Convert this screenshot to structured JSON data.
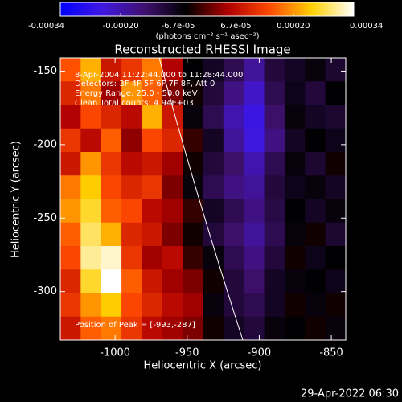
{
  "chart_data": {
    "type": "heatmap",
    "title": "Reconstructed RHESSI Image",
    "colorbar_label": "(photons cm⁻² s⁻¹ asec⁻²)",
    "xlabel": "Heliocentric X (arcsec)",
    "ylabel": "Heliocentric Y (arcsec)",
    "annotations": [
      "8-Apr-2004 11:22:44.000 to 11:28:44.000",
      "Detectors: 3F 4F 5F 6F 7F 8F, Att 0",
      "Energy Range: 25.0 - 50.0 keV",
      "Clean     Total counts: 4.94E+03"
    ],
    "peak_label": "Position of Peak = [-993,-287]",
    "footer": "29-Apr-2022 06:30",
    "xlim": [
      -1038,
      -840
    ],
    "ylim": [
      -333,
      -141
    ],
    "xticks": [
      -1000,
      -950,
      -900,
      -850
    ],
    "yticks": [
      -150,
      -200,
      -250,
      -300
    ],
    "clim": [
      -0.00034,
      0.00034
    ],
    "cticks": [
      -0.00034,
      {
        "value": -0.0002,
        "label": "-0.00020"
      },
      {
        "value": -6.7e-05,
        "label": "-6.7e-05"
      },
      {
        "value": 6.7e-05,
        "label": "6.7e-05"
      },
      {
        "value": 0.0002,
        "label": "0.00020"
      },
      0.00034
    ],
    "colorscale": [
      "#0000ff",
      "#4018e0",
      "#401070",
      "#000000",
      "#b00000",
      "#ff4a00",
      "#ffd000",
      "#ffffff"
    ],
    "z": [
      [
        0.00015,
        0.00022,
        8e-05,
        0.00012,
        0.00018,
        5e-05,
        -5e-05,
        -8e-05,
        -0.00012,
        -0.00018,
        -0.0001,
        -8e-05,
        -6e-05,
        -9e-05
      ],
      [
        0.0001,
        0.00018,
        4e-05,
        0.0002,
        0.00016,
        2e-05,
        -4e-05,
        -0.0001,
        -0.00016,
        -0.00022,
        -0.00012,
        -7e-05,
        -0.0001,
        -5e-05
      ],
      [
        5e-05,
        0.00014,
        0.0001,
        6e-05,
        0.00022,
        8e-05,
        -6e-05,
        -0.00012,
        -0.0002,
        -0.00025,
        -0.00014,
        -6e-05,
        -8e-05,
        -9e-05
      ],
      [
        0.00012,
        6e-05,
        0.00016,
        3e-05,
        0.00014,
        0.0001,
        -2e-05,
        -8e-05,
        -0.00018,
        -0.00024,
        -0.00016,
        -8e-05,
        -5e-05,
        -7e-05
      ],
      [
        8e-05,
        0.0002,
        0.00012,
        6e-05,
        8e-05,
        4e-05,
        -4e-05,
        -0.0001,
        -0.00014,
        -0.0002,
        -0.00012,
        -6e-05,
        -9e-05,
        -4e-05
      ],
      [
        0.00018,
        0.00024,
        0.00014,
        0.0001,
        0.00012,
        2e-05,
        -6e-05,
        -0.00012,
        -0.00016,
        -0.00018,
        -0.0001,
        -7e-05,
        -6e-05,
        -8e-05
      ],
      [
        0.0002,
        0.00026,
        0.00016,
        0.00014,
        6e-05,
        4e-05,
        -2e-05,
        -8e-05,
        -0.00012,
        -0.00016,
        -0.00011,
        -5e-05,
        -8e-05,
        -6e-05
      ],
      [
        0.00016,
        0.00028,
        0.00022,
        0.0001,
        8e-05,
        2e-05,
        -4e-05,
        -0.0001,
        -0.00014,
        -0.00018,
        -0.00012,
        -6e-05,
        -4e-05,
        -9e-05
      ],
      [
        0.00014,
        0.0003,
        0.00032,
        0.00012,
        4e-05,
        6e-05,
        -2e-05,
        -6e-05,
        -0.00012,
        -0.00016,
        -0.0001,
        -4e-05,
        -7e-05,
        -5e-05
      ],
      [
        0.0001,
        0.00026,
        0.00034,
        0.00016,
        8e-05,
        4e-05,
        2e-05,
        -4e-05,
        -0.0001,
        -0.00014,
        -8e-05,
        -6e-05,
        -5e-05,
        -7e-05
      ],
      [
        0.00012,
        0.0002,
        0.00024,
        0.00014,
        0.0001,
        6e-05,
        4e-05,
        -6e-05,
        -0.0001,
        -0.00012,
        -8e-05,
        -4e-05,
        -6e-05,
        -4e-05
      ],
      [
        8e-05,
        0.00016,
        0.00018,
        0.00012,
        6e-05,
        4e-05,
        2e-05,
        -4e-05,
        -8e-05,
        -0.0001,
        -6e-05,
        -5e-05,
        -4e-05,
        -6e-05
      ]
    ]
  }
}
